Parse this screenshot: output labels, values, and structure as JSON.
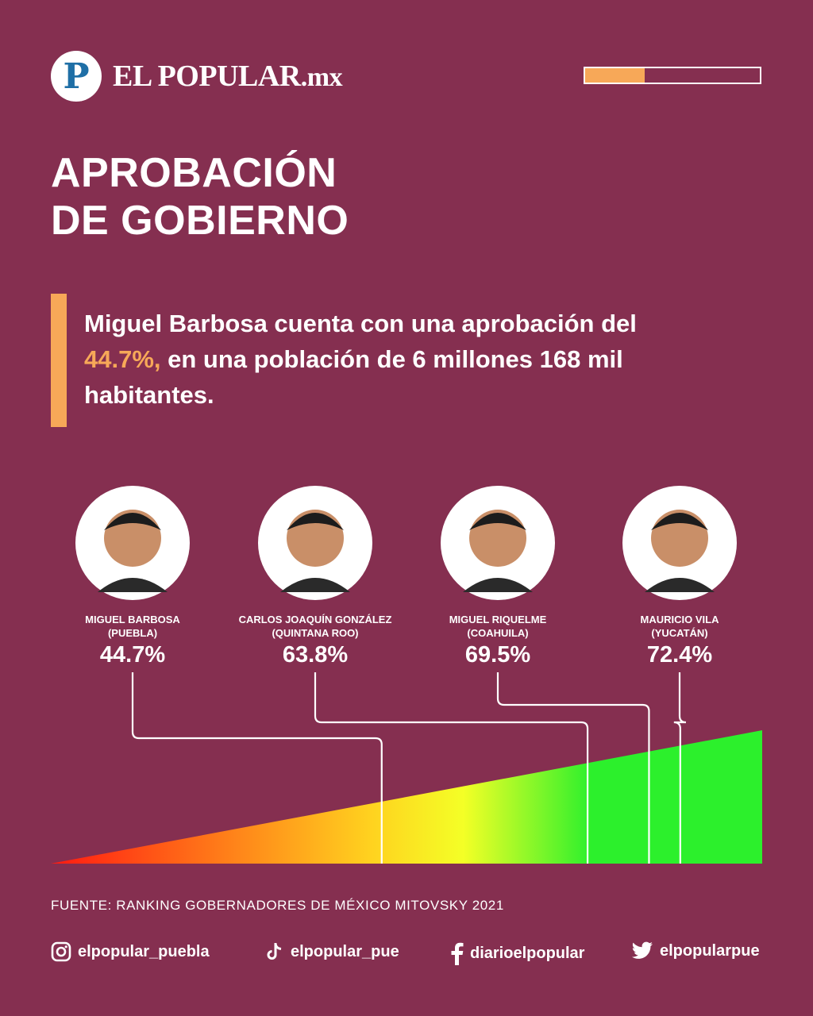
{
  "brand": {
    "logo_letter": "P",
    "name": "EL POPULAR",
    "tld": ".mx",
    "progress_fraction": 0.34
  },
  "title_lines": [
    "APROBACIÓN",
    "DE GOBIERNO"
  ],
  "summary": {
    "line1": "Miguel Barbosa cuenta con una aprobación del",
    "highlight": "44.7%,",
    "line2_rest": " en una población de 6 millones 168 mil",
    "line3": "habitantes."
  },
  "colors": {
    "background": "#852f50",
    "accent": "#f7a858",
    "gradient": [
      "#ff1a12",
      "#ffd21f",
      "#f4ff26",
      "#2cf02c"
    ]
  },
  "chart_data": {
    "type": "bar",
    "categories": [
      "MIGUEL BARBOSA (PUEBLA)",
      "CARLOS JOAQUÍN GONZÁLEZ (QUINTANA ROO)",
      "MIGUEL RIQUELME (COAHUILA)",
      "MAURICIO VILA (YUCATÁN)"
    ],
    "series": [
      {
        "values": [
          44.7,
          63.8,
          69.5,
          72.4
        ]
      }
    ],
    "items": [
      {
        "name_line1": "MIGUEL BARBOSA",
        "name_line2": "(PUEBLA)",
        "value": 44.7,
        "label": "44.7%"
      },
      {
        "name_line1": "CARLOS JOAQUÍN GONZÁLEZ",
        "name_line2": "(QUINTANA ROO)",
        "value": 63.8,
        "label": "63.8%"
      },
      {
        "name_line1": "MIGUEL RIQUELME",
        "name_line2": "(COAHUILA)",
        "value": 69.5,
        "label": "69.5%"
      },
      {
        "name_line1": "MAURICIO VILA",
        "name_line2": "(YUCATÁN)",
        "value": 72.4,
        "label": "72.4%"
      }
    ],
    "scale": "gradient wedge red to green, low to high approval"
  },
  "source": "FUENTE: RANKING GOBERNADORES DE MÉXICO MITOVSKY 2021",
  "social": [
    {
      "icon": "instagram-icon",
      "handle": "elpopular_puebla"
    },
    {
      "icon": "tiktok-icon",
      "handle": "elpopular_pue"
    },
    {
      "icon": "facebook-icon",
      "handle": "diarioelpopular"
    },
    {
      "icon": "twitter-icon",
      "handle": "elpopularpue"
    }
  ]
}
